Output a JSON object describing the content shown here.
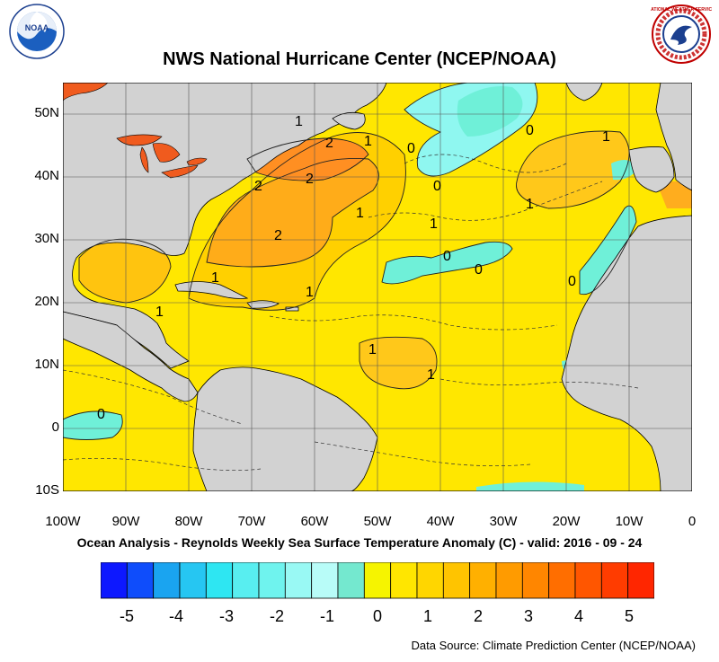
{
  "title": "NWS National Hurricane Center (NCEP/NOAA)",
  "subtitle": "Ocean Analysis - Reynolds Weekly Sea Surface Temperature Anomaly (C) - valid: 2016 - 09 - 24",
  "source": "Data Source: Climate Prediction Center (NCEP/NOAA)",
  "logos": {
    "left": "NOAA",
    "right": "NATIONAL WEATHER SERVICE"
  },
  "axes": {
    "lat_labels": [
      "50N",
      "40N",
      "30N",
      "20N",
      "10N",
      "0",
      "10S"
    ],
    "lon_labels": [
      "100W",
      "90W",
      "80W",
      "70W",
      "60W",
      "50W",
      "40W",
      "30W",
      "20W",
      "10W",
      "0"
    ]
  },
  "colorbar": {
    "labels": [
      "-5",
      "-4",
      "-3",
      "-2",
      "-1",
      "0",
      "1",
      "2",
      "3",
      "4",
      "5"
    ],
    "colors": [
      "#0d18ff",
      "#0f4dfb",
      "#1aa4f0",
      "#26c6f2",
      "#2ee6f2",
      "#58eef0",
      "#6ff3ee",
      "#99f9f4",
      "#b8fcf8",
      "#74e8cf",
      "#f6f400",
      "#ffe600",
      "#ffd600",
      "#ffc400",
      "#ffb000",
      "#ff9b00",
      "#ff8600",
      "#ff6e00",
      "#ff5600",
      "#ff3c00",
      "#ff2600"
    ]
  },
  "colors": {
    "land": "#d2d2d2",
    "ocean_base": "#ffe700",
    "anom_1": "#ffd000",
    "anom_2": "#ffac19",
    "anom_3": "#ff8420",
    "anom_4": "#f05b1e",
    "cool_0": "#6ff0d8",
    "cool_1": "#8ff7f0"
  },
  "contour_labels": [
    "1",
    "1",
    "2",
    "2",
    "2",
    "0",
    "1",
    "0",
    "2",
    "1",
    "1",
    "1",
    "0",
    "0",
    "0",
    "1",
    "1",
    "1",
    "1",
    "0",
    "1",
    "0"
  ]
}
